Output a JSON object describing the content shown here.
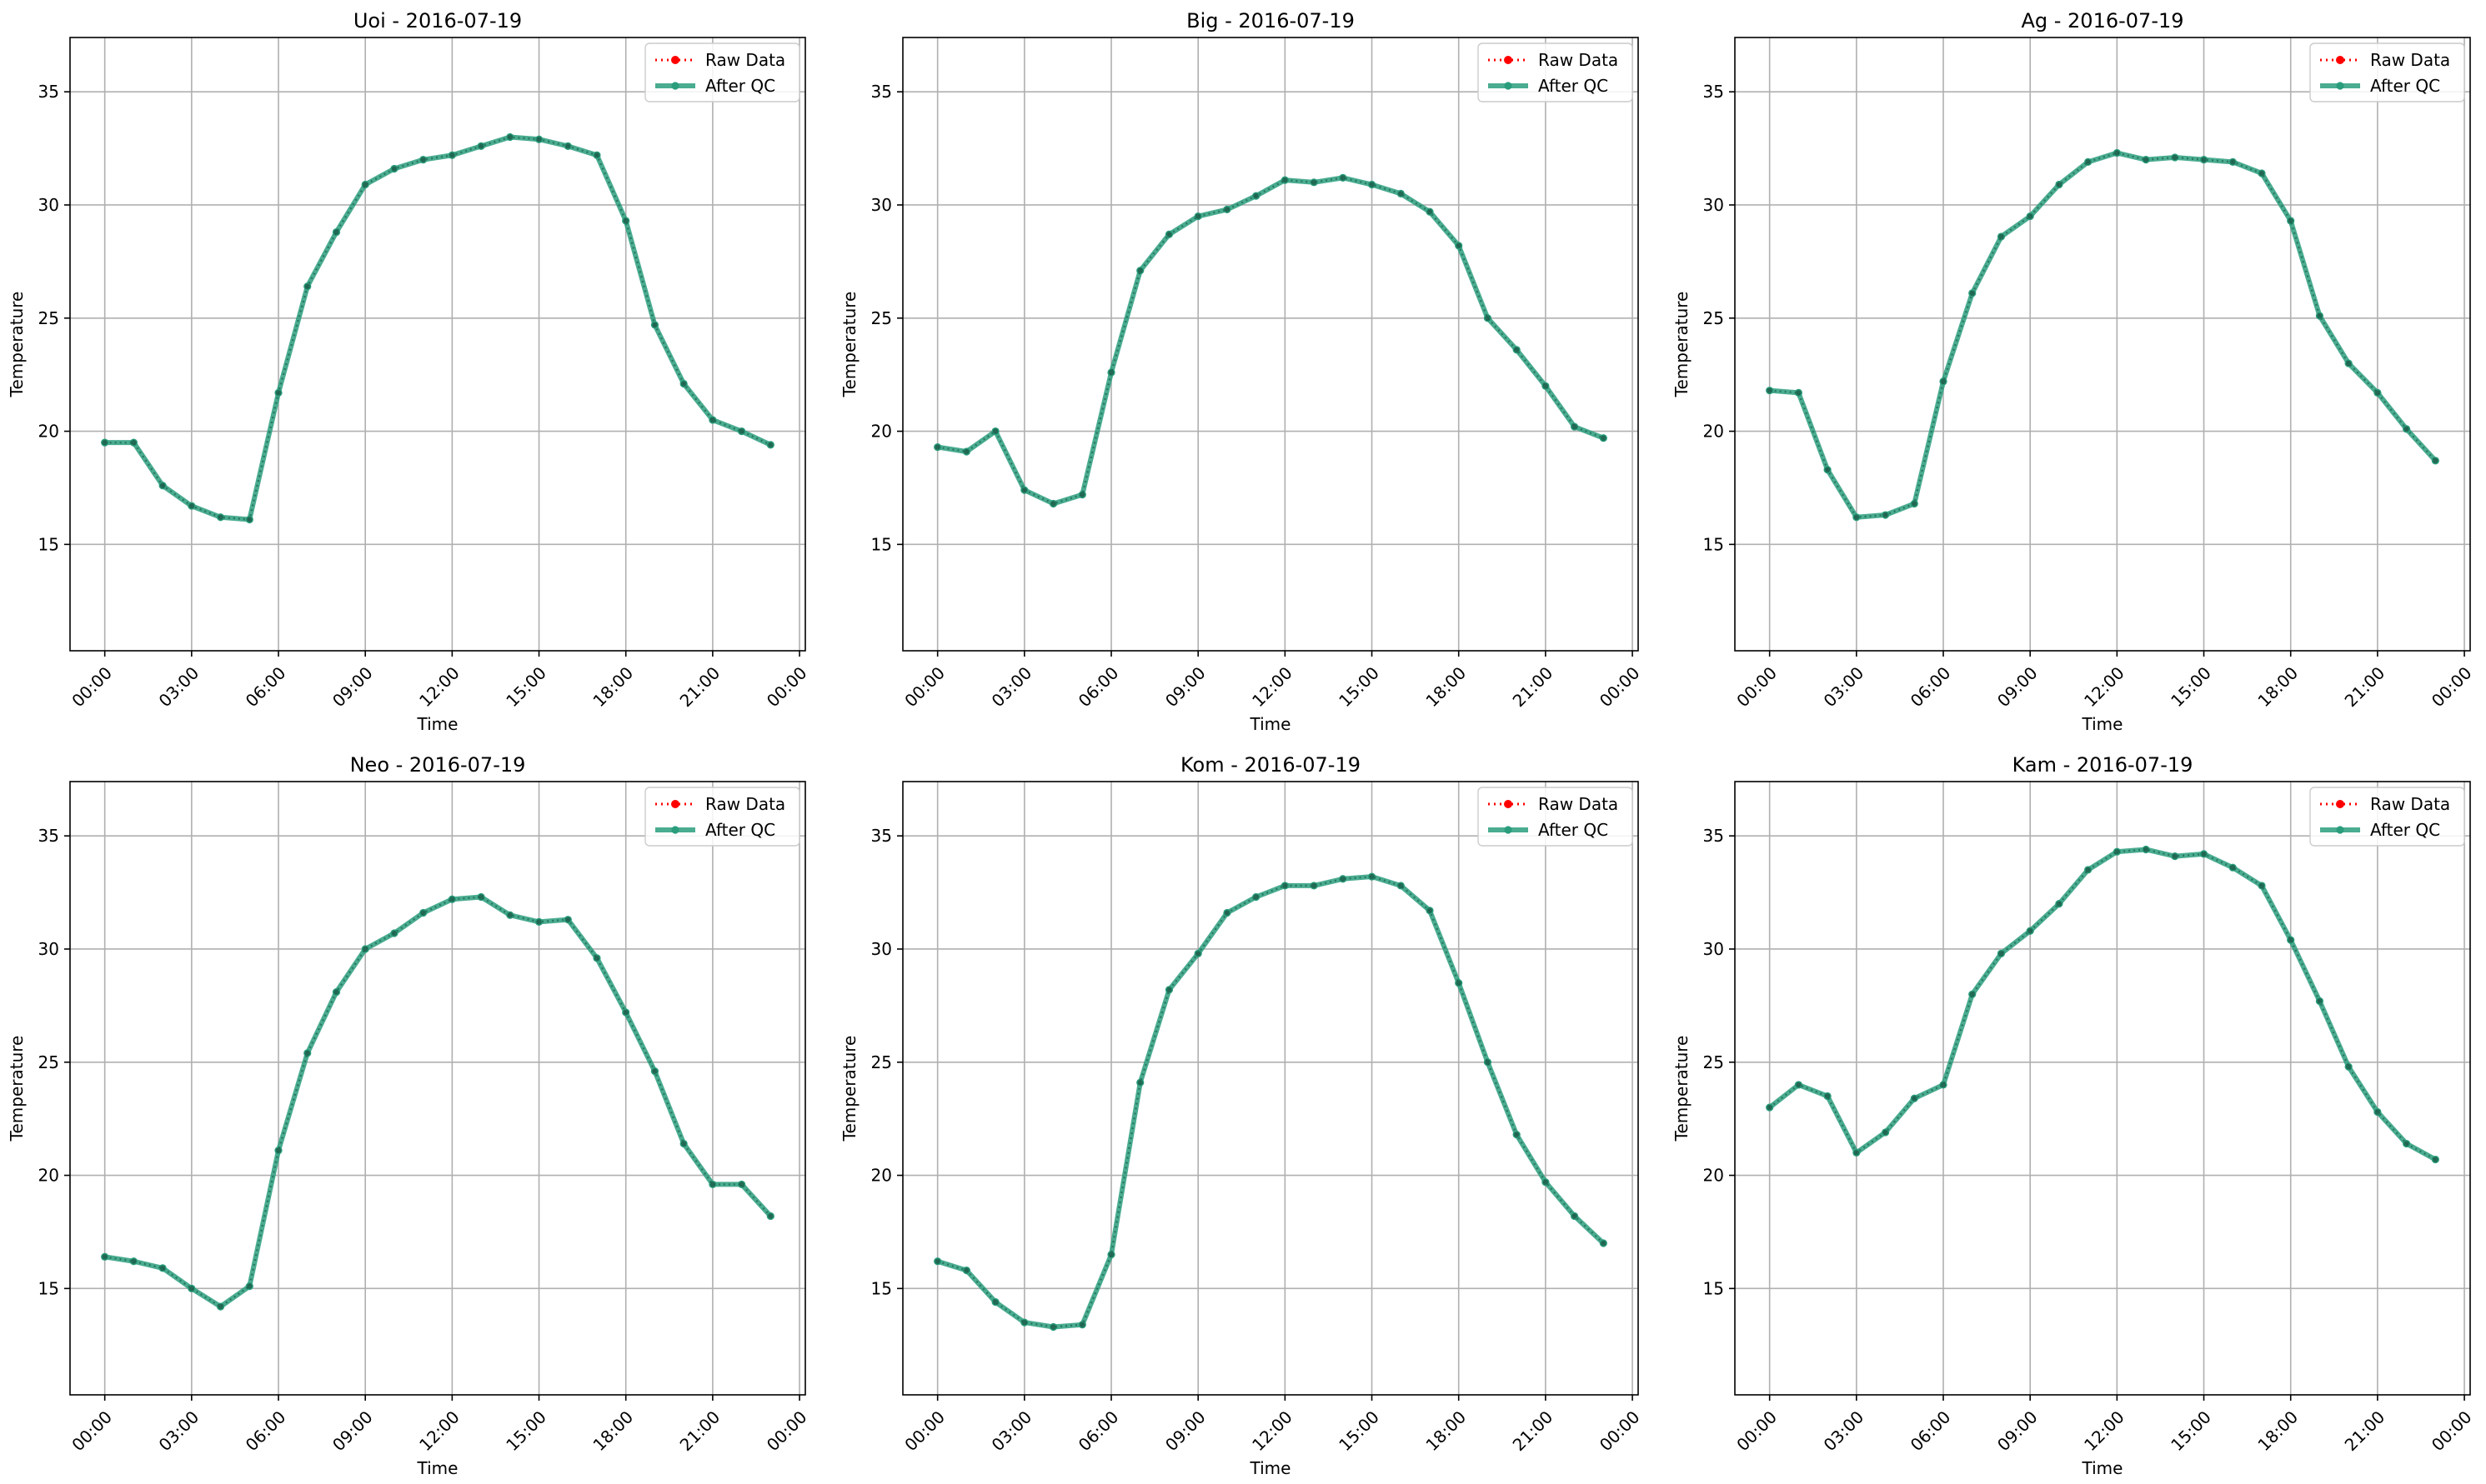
{
  "chart_data": [
    {
      "type": "line",
      "title": "Uoi - 2016-07-19",
      "xlabel": "Time",
      "ylabel": "Temperature",
      "x_ticks": [
        "00:00",
        "03:00",
        "06:00",
        "09:00",
        "12:00",
        "15:00",
        "18:00",
        "21:00",
        "00:00"
      ],
      "y_ticks": [
        15,
        20,
        25,
        30,
        35
      ],
      "xlim": [
        -1.2,
        24.2
      ],
      "ylim": [
        10.3,
        37.4
      ],
      "grid": true,
      "legend_position": "top-right",
      "x_hours": [
        0,
        1,
        2,
        3,
        4,
        5,
        6,
        7,
        8,
        9,
        10,
        11,
        12,
        13,
        14,
        15,
        16,
        17,
        18,
        19,
        20,
        21,
        22,
        23
      ],
      "series": [
        {
          "name": "Raw Data",
          "color": "#ff0000",
          "style": "dotted",
          "values": [
            19.5,
            19.5,
            17.6,
            16.7,
            16.2,
            16.1,
            21.7,
            26.4,
            28.8,
            30.9,
            31.6,
            32.0,
            32.2,
            32.6,
            33.0,
            32.9,
            32.6,
            32.2,
            29.3,
            24.7,
            22.1,
            20.5,
            20.0,
            19.4
          ]
        },
        {
          "name": "After QC",
          "color": "#2a9d7c",
          "style": "solid",
          "values": [
            19.5,
            19.5,
            17.6,
            16.7,
            16.2,
            16.1,
            21.7,
            26.4,
            28.8,
            30.9,
            31.6,
            32.0,
            32.2,
            32.6,
            33.0,
            32.9,
            32.6,
            32.2,
            29.3,
            24.7,
            22.1,
            20.5,
            20.0,
            19.4
          ]
        }
      ]
    },
    {
      "type": "line",
      "title": "Big - 2016-07-19",
      "xlabel": "Time",
      "ylabel": "Temperature",
      "x_ticks": [
        "00:00",
        "03:00",
        "06:00",
        "09:00",
        "12:00",
        "15:00",
        "18:00",
        "21:00",
        "00:00"
      ],
      "y_ticks": [
        15,
        20,
        25,
        30,
        35
      ],
      "xlim": [
        -1.2,
        24.2
      ],
      "ylim": [
        10.3,
        37.4
      ],
      "grid": true,
      "legend_position": "top-right",
      "x_hours": [
        0,
        1,
        2,
        3,
        4,
        5,
        6,
        7,
        8,
        9,
        10,
        11,
        12,
        13,
        14,
        15,
        16,
        17,
        18,
        19,
        20,
        21,
        22,
        23
      ],
      "series": [
        {
          "name": "Raw Data",
          "color": "#ff0000",
          "style": "dotted",
          "values": [
            19.3,
            19.1,
            20.0,
            17.4,
            16.8,
            17.2,
            22.6,
            27.1,
            28.7,
            29.5,
            29.8,
            30.4,
            31.1,
            31.0,
            31.2,
            30.9,
            30.5,
            29.7,
            28.2,
            25.0,
            23.6,
            22.0,
            20.2,
            19.7
          ]
        },
        {
          "name": "After QC",
          "color": "#2a9d7c",
          "style": "solid",
          "values": [
            19.3,
            19.1,
            20.0,
            17.4,
            16.8,
            17.2,
            22.6,
            27.1,
            28.7,
            29.5,
            29.8,
            30.4,
            31.1,
            31.0,
            31.2,
            30.9,
            30.5,
            29.7,
            28.2,
            25.0,
            23.6,
            22.0,
            20.2,
            19.7
          ]
        }
      ]
    },
    {
      "type": "line",
      "title": "Ag - 2016-07-19",
      "xlabel": "Time",
      "ylabel": "Temperature",
      "x_ticks": [
        "00:00",
        "03:00",
        "06:00",
        "09:00",
        "12:00",
        "15:00",
        "18:00",
        "21:00",
        "00:00"
      ],
      "y_ticks": [
        15,
        20,
        25,
        30,
        35
      ],
      "xlim": [
        -1.2,
        24.2
      ],
      "ylim": [
        10.3,
        37.4
      ],
      "grid": true,
      "legend_position": "top-right",
      "x_hours": [
        0,
        1,
        2,
        3,
        4,
        5,
        6,
        7,
        8,
        9,
        10,
        11,
        12,
        13,
        14,
        15,
        16,
        17,
        18,
        19,
        20,
        21,
        22,
        23
      ],
      "series": [
        {
          "name": "Raw Data",
          "color": "#ff0000",
          "style": "dotted",
          "values": [
            21.8,
            21.7,
            18.3,
            16.2,
            16.3,
            16.8,
            22.2,
            26.1,
            28.6,
            29.5,
            30.9,
            31.9,
            32.3,
            32.0,
            32.1,
            32.0,
            31.9,
            31.4,
            29.3,
            25.1,
            23.0,
            21.7,
            20.1,
            18.7
          ]
        },
        {
          "name": "After QC",
          "color": "#2a9d7c",
          "style": "solid",
          "values": [
            21.8,
            21.7,
            18.3,
            16.2,
            16.3,
            16.8,
            22.2,
            26.1,
            28.6,
            29.5,
            30.9,
            31.9,
            32.3,
            32.0,
            32.1,
            32.0,
            31.9,
            31.4,
            29.3,
            25.1,
            23.0,
            21.7,
            20.1,
            18.7
          ]
        }
      ]
    },
    {
      "type": "line",
      "title": "Neo - 2016-07-19",
      "xlabel": "Time",
      "ylabel": "Temperature",
      "x_ticks": [
        "00:00",
        "03:00",
        "06:00",
        "09:00",
        "12:00",
        "15:00",
        "18:00",
        "21:00",
        "00:00"
      ],
      "y_ticks": [
        15,
        20,
        25,
        30,
        35
      ],
      "xlim": [
        -1.2,
        24.2
      ],
      "ylim": [
        10.3,
        37.4
      ],
      "grid": true,
      "legend_position": "top-right",
      "x_hours": [
        0,
        1,
        2,
        3,
        4,
        5,
        6,
        7,
        8,
        9,
        10,
        11,
        12,
        13,
        14,
        15,
        16,
        17,
        18,
        19,
        20,
        21,
        22,
        23
      ],
      "series": [
        {
          "name": "Raw Data",
          "color": "#ff0000",
          "style": "dotted",
          "values": [
            16.4,
            16.2,
            15.9,
            15.0,
            14.2,
            15.1,
            21.1,
            25.4,
            28.1,
            30.0,
            30.7,
            31.6,
            32.2,
            32.3,
            31.5,
            31.2,
            31.3,
            29.6,
            27.2,
            24.6,
            21.4,
            19.6,
            19.6,
            18.2
          ]
        },
        {
          "name": "After QC",
          "color": "#2a9d7c",
          "style": "solid",
          "values": [
            16.4,
            16.2,
            15.9,
            15.0,
            14.2,
            15.1,
            21.1,
            25.4,
            28.1,
            30.0,
            30.7,
            31.6,
            32.2,
            32.3,
            31.5,
            31.2,
            31.3,
            29.6,
            27.2,
            24.6,
            21.4,
            19.6,
            19.6,
            18.2
          ]
        }
      ]
    },
    {
      "type": "line",
      "title": "Kom - 2016-07-19",
      "xlabel": "Time",
      "ylabel": "Temperature",
      "x_ticks": [
        "00:00",
        "03:00",
        "06:00",
        "09:00",
        "12:00",
        "15:00",
        "18:00",
        "21:00",
        "00:00"
      ],
      "y_ticks": [
        15,
        20,
        25,
        30,
        35
      ],
      "xlim": [
        -1.2,
        24.2
      ],
      "ylim": [
        10.3,
        37.4
      ],
      "grid": true,
      "legend_position": "top-right",
      "x_hours": [
        0,
        1,
        2,
        3,
        4,
        5,
        6,
        7,
        8,
        9,
        10,
        11,
        12,
        13,
        14,
        15,
        16,
        17,
        18,
        19,
        20,
        21,
        22,
        23
      ],
      "series": [
        {
          "name": "Raw Data",
          "color": "#ff0000",
          "style": "dotted",
          "values": [
            16.2,
            15.8,
            14.4,
            13.5,
            13.3,
            13.4,
            16.5,
            24.1,
            28.2,
            29.8,
            31.6,
            32.3,
            32.8,
            32.8,
            33.1,
            33.2,
            32.8,
            31.7,
            28.5,
            25.0,
            21.8,
            19.7,
            18.2,
            17.0
          ]
        },
        {
          "name": "After QC",
          "color": "#2a9d7c",
          "style": "solid",
          "values": [
            16.2,
            15.8,
            14.4,
            13.5,
            13.3,
            13.4,
            16.5,
            24.1,
            28.2,
            29.8,
            31.6,
            32.3,
            32.8,
            32.8,
            33.1,
            33.2,
            32.8,
            31.7,
            28.5,
            25.0,
            21.8,
            19.7,
            18.2,
            17.0
          ]
        }
      ]
    },
    {
      "type": "line",
      "title": "Kam - 2016-07-19",
      "xlabel": "Time",
      "ylabel": "Temperature",
      "x_ticks": [
        "00:00",
        "03:00",
        "06:00",
        "09:00",
        "12:00",
        "15:00",
        "18:00",
        "21:00",
        "00:00"
      ],
      "y_ticks": [
        15,
        20,
        25,
        30,
        35
      ],
      "xlim": [
        -1.2,
        24.2
      ],
      "ylim": [
        10.3,
        37.4
      ],
      "grid": true,
      "legend_position": "top-right",
      "x_hours": [
        0,
        1,
        2,
        3,
        4,
        5,
        6,
        7,
        8,
        9,
        10,
        11,
        12,
        13,
        14,
        15,
        16,
        17,
        18,
        19,
        20,
        21,
        22,
        23
      ],
      "series": [
        {
          "name": "Raw Data",
          "color": "#ff0000",
          "style": "dotted",
          "values": [
            23.0,
            24.0,
            23.5,
            21.0,
            21.9,
            23.4,
            24.0,
            28.0,
            29.8,
            30.8,
            32.0,
            33.5,
            34.3,
            34.4,
            34.1,
            34.2,
            33.6,
            32.8,
            30.4,
            27.7,
            24.8,
            22.8,
            21.4,
            20.7
          ]
        },
        {
          "name": "After QC",
          "color": "#2a9d7c",
          "style": "solid",
          "values": [
            23.0,
            24.0,
            23.5,
            21.0,
            21.9,
            23.4,
            24.0,
            28.0,
            29.8,
            30.8,
            32.0,
            33.5,
            34.3,
            34.4,
            34.1,
            34.2,
            33.6,
            32.8,
            30.4,
            27.7,
            24.8,
            22.8,
            21.4,
            20.7
          ]
        }
      ]
    }
  ]
}
